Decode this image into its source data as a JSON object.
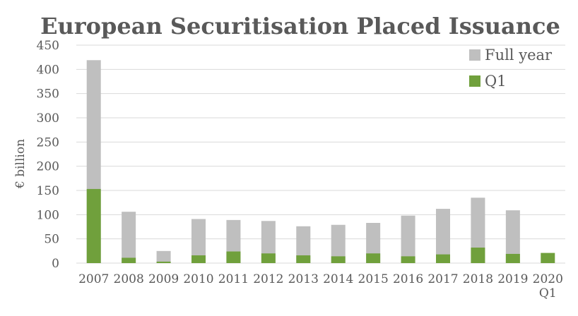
{
  "chart_data": {
    "type": "bar",
    "title": "European Securitisation Placed Issuance",
    "xlabel": "",
    "ylabel": "€ billion",
    "categories": [
      "2007",
      "2008",
      "2009",
      "2010",
      "2011",
      "2012",
      "2013",
      "2014",
      "2015",
      "2016",
      "2017",
      "2018",
      "2019",
      "2020\nQ1"
    ],
    "series": [
      {
        "name": "Full year",
        "color": "#bfbfbf",
        "values": [
          419,
          106,
          25,
          91,
          89,
          87,
          76,
          79,
          83,
          98,
          112,
          135,
          109,
          null
        ]
      },
      {
        "name": "Q1",
        "color": "#70a03c",
        "values": [
          153,
          11,
          3,
          16,
          24,
          20,
          16,
          14,
          20,
          14,
          18,
          32,
          19,
          21
        ]
      }
    ],
    "ylim": [
      0,
      450
    ],
    "yticks": [
      0,
      50,
      100,
      150,
      200,
      250,
      300,
      350,
      400,
      450
    ],
    "grid": true,
    "legend_position": "top-right",
    "overlay": true
  }
}
